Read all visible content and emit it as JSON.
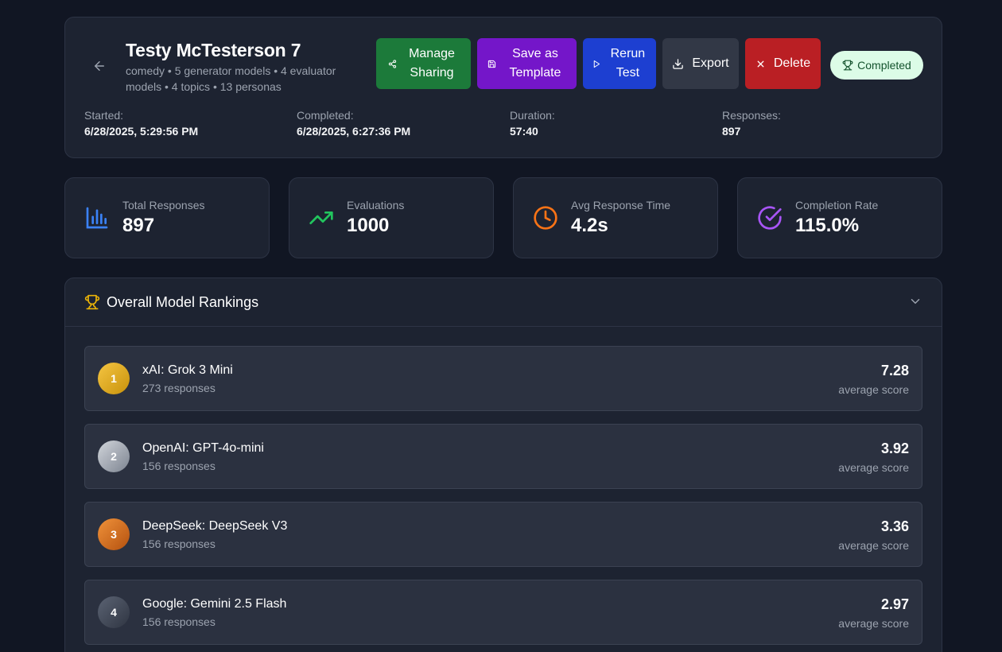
{
  "header": {
    "title": "Testy McTesterson 7",
    "subtitle": "comedy • 5 generator models • 4 evaluator models • 4 topics • 13 personas",
    "actions": {
      "manage_sharing": "Manage Sharing",
      "save_template": "Save as Template",
      "rerun": "Rerun Test",
      "export": "Export",
      "delete": "Delete"
    },
    "status": "Completed",
    "meta": [
      {
        "label": "Started:",
        "value": "6/28/2025, 5:29:56 PM"
      },
      {
        "label": "Completed:",
        "value": "6/28/2025, 6:27:36 PM"
      },
      {
        "label": "Duration:",
        "value": "57:40"
      },
      {
        "label": "Responses:",
        "value": "897"
      }
    ]
  },
  "stats": [
    {
      "label": "Total Responses",
      "value": "897",
      "icon": "bar-chart-icon",
      "color": "#3b82f6"
    },
    {
      "label": "Evaluations",
      "value": "1000",
      "icon": "trending-up-icon",
      "color": "#22c55e"
    },
    {
      "label": "Avg Response Time",
      "value": "4.2s",
      "icon": "clock-icon",
      "color": "#f97316"
    },
    {
      "label": "Completion Rate",
      "value": "115.0%",
      "icon": "check-circle-icon",
      "color": "#a855f7"
    }
  ],
  "rankings": {
    "title": "Overall Model Rankings",
    "items": [
      {
        "rank": "1",
        "model": "xAI: Grok 3 Mini",
        "responses": "273 responses",
        "score": "7.28",
        "score_label": "average score"
      },
      {
        "rank": "2",
        "model": "OpenAI: GPT-4o-mini",
        "responses": "156 responses",
        "score": "3.92",
        "score_label": "average score"
      },
      {
        "rank": "3",
        "model": "DeepSeek: DeepSeek V3",
        "responses": "156 responses",
        "score": "3.36",
        "score_label": "average score"
      },
      {
        "rank": "4",
        "model": "Google: Gemini 2.5 Flash",
        "responses": "156 responses",
        "score": "2.97",
        "score_label": "average score"
      }
    ]
  }
}
